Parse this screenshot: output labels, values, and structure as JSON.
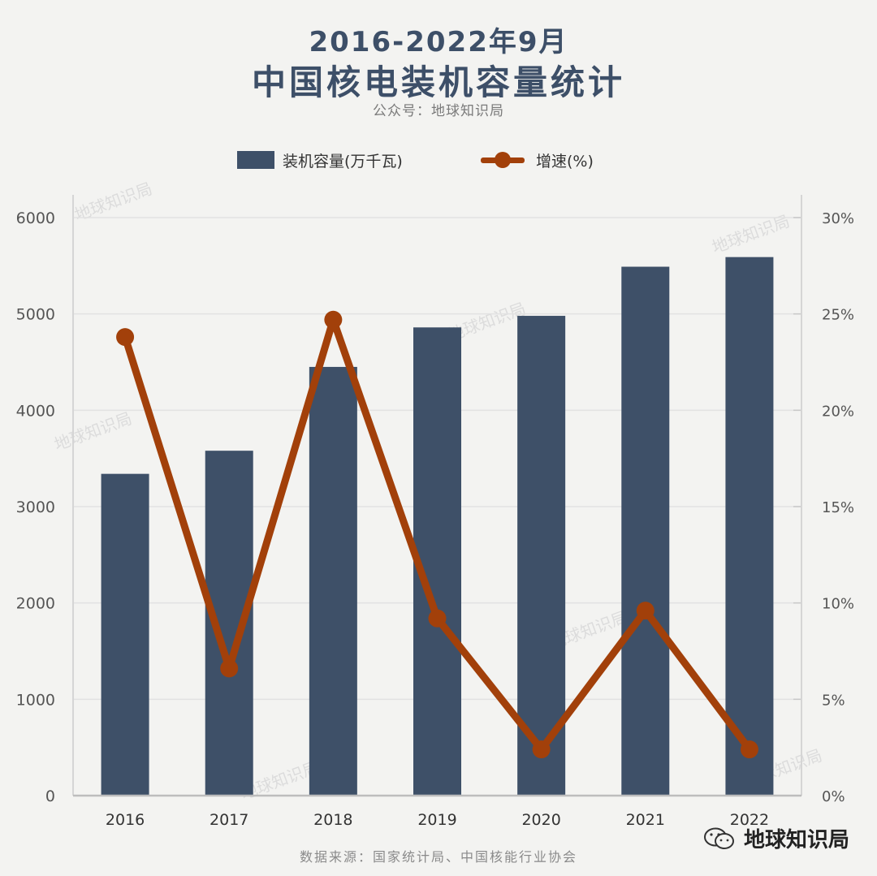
{
  "header": {
    "title_line1": "2016-2022年9月",
    "title_line2": "中国核电装机容量统计",
    "subtitle": "公众号：地球知识局"
  },
  "legend": {
    "bar_label": "装机容量(万千瓦)",
    "line_label": "增速(%)"
  },
  "colors": {
    "bar": "#3e5068",
    "line": "#a2400a",
    "title": "#3d4f68",
    "grid": "#e2e2e2"
  },
  "chart_data": {
    "type": "bar",
    "categories": [
      "2016",
      "2017",
      "2018",
      "2019",
      "2020",
      "2021",
      "2022"
    ],
    "series": [
      {
        "name": "装机容量(万千瓦)",
        "type": "bar",
        "axis": "left",
        "values": [
          3340,
          3580,
          4450,
          4860,
          4980,
          5490,
          5590
        ]
      },
      {
        "name": "增速(%)",
        "type": "line",
        "axis": "right",
        "values": [
          23.8,
          6.6,
          24.7,
          9.2,
          2.4,
          9.6,
          2.4
        ]
      }
    ],
    "ylim_left": [
      0,
      6000
    ],
    "yticks_left": [
      0,
      1000,
      2000,
      3000,
      4000,
      5000,
      6000
    ],
    "ytick_labels_left": [
      "0",
      "1000",
      "2000",
      "3000",
      "4000",
      "5000",
      "6000"
    ],
    "ylim_right": [
      0,
      30
    ],
    "yticks_right": [
      0,
      5,
      10,
      15,
      20,
      25,
      30
    ],
    "ytick_labels_right": [
      "0%",
      "5%",
      "10%",
      "15%",
      "20%",
      "25%",
      "30%"
    ],
    "grid": true
  },
  "watermark": "地球知识局",
  "footer": {
    "source": "数据来源：国家统计局、中国核能行业协会",
    "brand": "地球知识局"
  }
}
